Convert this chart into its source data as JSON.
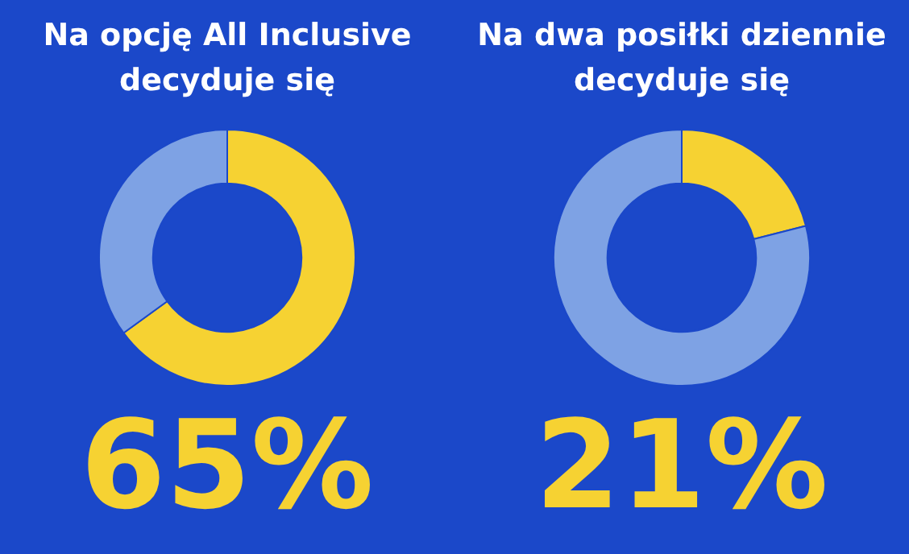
{
  "chart_data": [
    {
      "type": "donut",
      "title": "Na opcję All Inclusive decyduje się",
      "categories": [
        null,
        null
      ],
      "values": [
        65,
        35
      ],
      "colors": [
        "#f6d232",
        "#7ea2e4"
      ],
      "annotations": [
        "65%"
      ]
    },
    {
      "type": "donut",
      "title": "Na dwa posiłki dziennie decyduje się",
      "categories": [
        null,
        null
      ],
      "values": [
        21,
        79
      ],
      "colors": [
        "#f6d232",
        "#7ea2e4"
      ],
      "annotations": [
        "21%"
      ]
    }
  ]
}
